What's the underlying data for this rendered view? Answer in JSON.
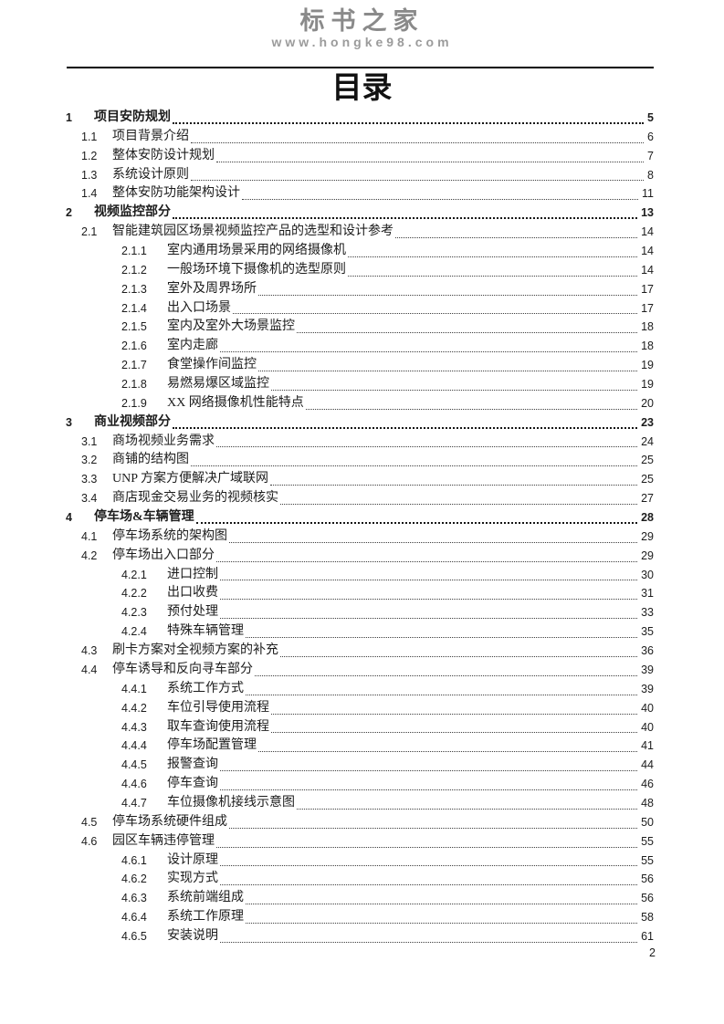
{
  "header": {
    "logo_text": "标书之家",
    "logo_url": "www.hongke98.com"
  },
  "toc": {
    "title": "目录",
    "entries": [
      {
        "level": 1,
        "num": "1",
        "title": "项目安防规划",
        "page": "5"
      },
      {
        "level": 2,
        "num": "1.1",
        "title": "项目背景介绍",
        "page": "6"
      },
      {
        "level": 2,
        "num": "1.2",
        "title": "整体安防设计规划",
        "page": "7"
      },
      {
        "level": 2,
        "num": "1.3",
        "title": "系统设计原则",
        "page": "8"
      },
      {
        "level": 2,
        "num": "1.4",
        "title": "整体安防功能架构设计",
        "page": "11"
      },
      {
        "level": 1,
        "num": "2",
        "title": "视频监控部分",
        "page": "13"
      },
      {
        "level": 2,
        "num": "2.1",
        "title": "智能建筑园区场景视频监控产品的选型和设计参考",
        "page": "14"
      },
      {
        "level": 3,
        "num": "2.1.1",
        "title": "室内通用场景采用的网络摄像机",
        "page": "14"
      },
      {
        "level": 3,
        "num": "2.1.2",
        "title": "一般场环境下摄像机的选型原则",
        "page": "14"
      },
      {
        "level": 3,
        "num": "2.1.3",
        "title": "室外及周界场所",
        "page": "17"
      },
      {
        "level": 3,
        "num": "2.1.4",
        "title": "出入口场景",
        "page": "17"
      },
      {
        "level": 3,
        "num": "2.1.5",
        "title": "室内及室外大场景监控",
        "page": "18"
      },
      {
        "level": 3,
        "num": "2.1.6",
        "title": "室内走廊",
        "page": "18"
      },
      {
        "level": 3,
        "num": "2.1.7",
        "title": "食堂操作间监控",
        "page": "19"
      },
      {
        "level": 3,
        "num": "2.1.8",
        "title": "易燃易爆区域监控",
        "page": "19"
      },
      {
        "level": 3,
        "num": "2.1.9",
        "title": "XX 网络摄像机性能特点",
        "page": "20"
      },
      {
        "level": 1,
        "num": "3",
        "title": "商业视频部分",
        "page": "23"
      },
      {
        "level": 2,
        "num": "3.1",
        "title": "商场视频业务需求",
        "page": "24"
      },
      {
        "level": 2,
        "num": "3.2",
        "title": "商铺的结构图",
        "page": "25"
      },
      {
        "level": 2,
        "num": "3.3",
        "title": "UNP 方案方便解决广域联网",
        "page": "25"
      },
      {
        "level": 2,
        "num": "3.4",
        "title": "商店现金交易业务的视频核实",
        "page": "27"
      },
      {
        "level": 1,
        "num": "4",
        "title": "停车场&车辆管理",
        "page": "28"
      },
      {
        "level": 2,
        "num": "4.1",
        "title": "停车场系统的架构图",
        "page": "29"
      },
      {
        "level": 2,
        "num": "4.2",
        "title": "停车场出入口部分",
        "page": "29"
      },
      {
        "level": 3,
        "num": "4.2.1",
        "title": "进口控制",
        "page": "30"
      },
      {
        "level": 3,
        "num": "4.2.2",
        "title": "出口收费",
        "page": "31"
      },
      {
        "level": 3,
        "num": "4.2.3",
        "title": "预付处理",
        "page": "33"
      },
      {
        "level": 3,
        "num": "4.2.4",
        "title": "特殊车辆管理",
        "page": "35"
      },
      {
        "level": 2,
        "num": "4.3",
        "title": "刷卡方案对全视频方案的补充",
        "page": "36"
      },
      {
        "level": 2,
        "num": "4.4",
        "title": "停车诱导和反向寻车部分",
        "page": "39"
      },
      {
        "level": 3,
        "num": "4.4.1",
        "title": "系统工作方式",
        "page": "39"
      },
      {
        "level": 3,
        "num": "4.4.2",
        "title": "车位引导使用流程",
        "page": "40"
      },
      {
        "level": 3,
        "num": "4.4.3",
        "title": "取车查询使用流程",
        "page": "40"
      },
      {
        "level": 3,
        "num": "4.4.4",
        "title": "停车场配置管理",
        "page": "41"
      },
      {
        "level": 3,
        "num": "4.4.5",
        "title": "报警查询",
        "page": "44"
      },
      {
        "level": 3,
        "num": "4.4.6",
        "title": "停车查询",
        "page": "46"
      },
      {
        "level": 3,
        "num": "4.4.7",
        "title": "车位摄像机接线示意图",
        "page": "48"
      },
      {
        "level": 2,
        "num": "4.5",
        "title": "停车场系统硬件组成",
        "page": "50"
      },
      {
        "level": 2,
        "num": "4.6",
        "title": "园区车辆违停管理",
        "page": "55"
      },
      {
        "level": 3,
        "num": "4.6.1",
        "title": "设计原理",
        "page": "55"
      },
      {
        "level": 3,
        "num": "4.6.2",
        "title": "实现方式",
        "page": "56"
      },
      {
        "level": 3,
        "num": "4.6.3",
        "title": "系统前端组成",
        "page": "56"
      },
      {
        "level": 3,
        "num": "4.6.4",
        "title": "系统工作原理",
        "page": "58"
      },
      {
        "level": 3,
        "num": "4.6.5",
        "title": "安装说明",
        "page": "61"
      }
    ]
  },
  "footer": {
    "page_number": "2"
  },
  "colors": {
    "logo_grey": "#8a8a8a",
    "url_grey": "#9b9b9b",
    "text": "#1c1c1c",
    "rule": "#000000"
  }
}
